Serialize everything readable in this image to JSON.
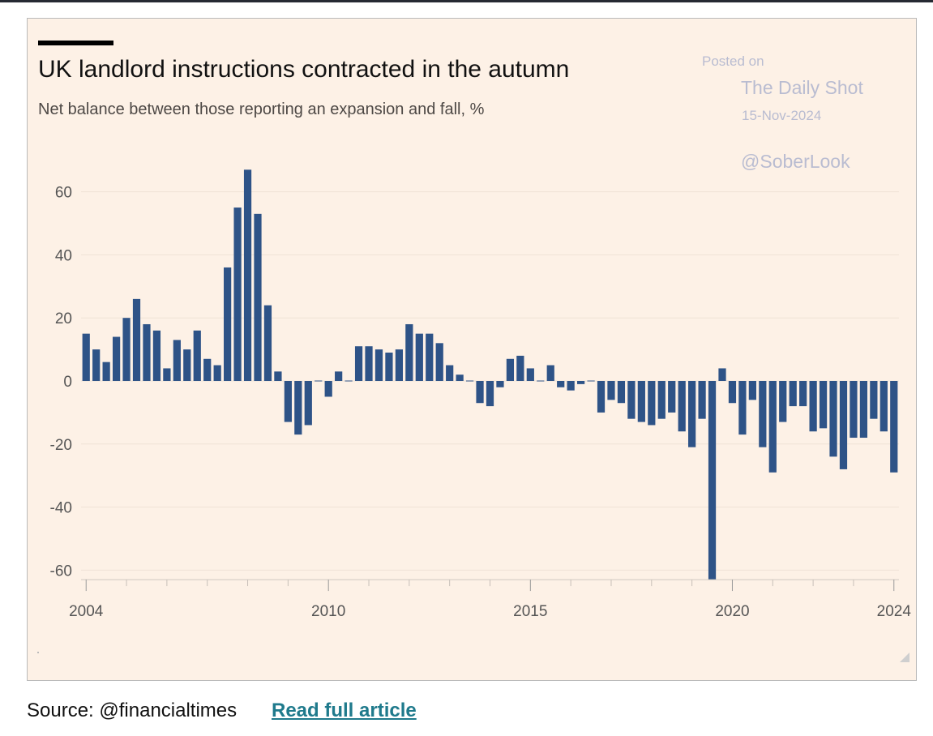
{
  "chart_data": {
    "type": "bar",
    "title": "UK landlord instructions contracted in the autumn",
    "subtitle": "Net balance between those reporting an expansion and fall, %",
    "ylim": [
      -63,
      67
    ],
    "yticks": [
      60,
      40,
      20,
      0,
      -20,
      -40,
      -60
    ],
    "ytick_labels": [
      "60",
      "40",
      "20",
      "0",
      "-20",
      "-40",
      "-60"
    ],
    "xlim": [
      2003.875,
      2024.125
    ],
    "xticks": [
      2004,
      2010,
      2015,
      2020,
      2024
    ],
    "xtick_labels": [
      "2004",
      "2010",
      "2015",
      "2020",
      "2024"
    ],
    "grid": "horizontal",
    "bar_color": "#2e5387",
    "x": [
      2004.0,
      2004.25,
      2004.5,
      2004.75,
      2005.0,
      2005.25,
      2005.5,
      2005.75,
      2006.0,
      2006.25,
      2006.5,
      2006.75,
      2007.0,
      2007.25,
      2007.5,
      2007.75,
      2008.0,
      2008.25,
      2008.5,
      2008.75,
      2009.0,
      2009.25,
      2009.5,
      2009.75,
      2010.0,
      2010.25,
      2010.5,
      2010.75,
      2011.0,
      2011.25,
      2011.5,
      2011.75,
      2012.0,
      2012.25,
      2012.5,
      2012.75,
      2013.0,
      2013.25,
      2013.5,
      2013.75,
      2014.0,
      2014.25,
      2014.5,
      2014.75,
      2015.0,
      2015.25,
      2015.5,
      2015.75,
      2016.0,
      2016.25,
      2016.5,
      2016.75,
      2017.0,
      2017.25,
      2017.5,
      2017.75,
      2018.0,
      2018.25,
      2018.5,
      2018.75,
      2019.0,
      2019.25,
      2019.5,
      2019.75,
      2020.0,
      2020.25,
      2020.5,
      2020.75,
      2021.0,
      2021.25,
      2021.5,
      2021.75,
      2022.0,
      2022.25,
      2022.5,
      2022.75,
      2023.0,
      2023.25,
      2023.5,
      2023.75,
      2024.0
    ],
    "values": [
      15,
      10,
      6,
      14,
      20,
      26,
      18,
      16,
      4,
      13,
      10,
      16,
      7,
      5,
      36,
      55,
      67,
      53,
      24,
      3,
      -13,
      -17,
      -14,
      0,
      -5,
      3,
      0,
      11,
      11,
      10,
      9,
      10,
      18,
      15,
      15,
      12,
      5,
      2,
      0,
      -7,
      -8,
      -2,
      7,
      8,
      4,
      0,
      5,
      -2,
      -3,
      -1,
      0,
      -10,
      -6,
      -7,
      -12,
      -13,
      -14,
      -12,
      -10,
      -16,
      -21,
      -12,
      -63,
      4,
      -7,
      -17,
      -6,
      -21,
      -29,
      -13,
      -8,
      -8,
      -16,
      -15,
      -24,
      -28,
      -18,
      -18,
      -12,
      -16,
      -29
    ]
  },
  "watermark": {
    "posted_on": "Posted on",
    "site": "The Daily Shot",
    "date": "15-Nov-2024",
    "handle": "@SoberLook"
  },
  "footer": {
    "source": "Source: @financialtimes",
    "link_label": "Read full article"
  }
}
